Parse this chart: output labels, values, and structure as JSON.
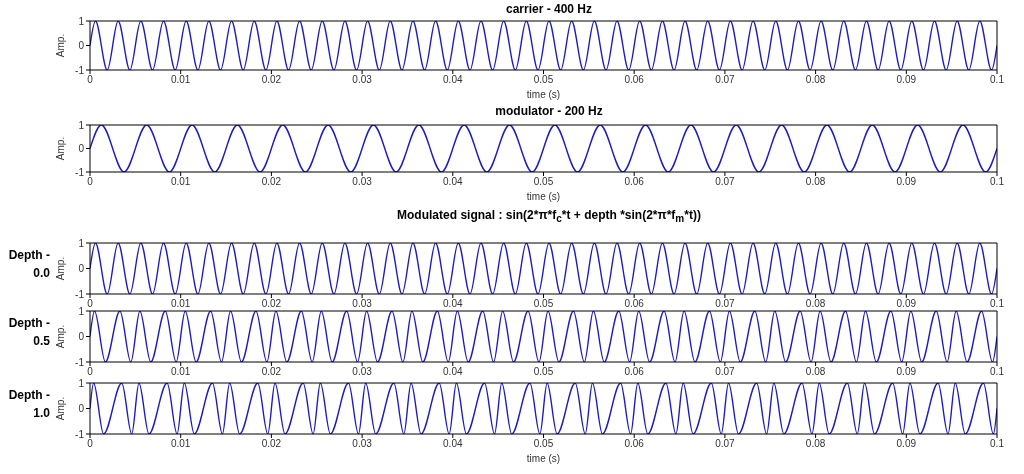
{
  "chart_data": [
    {
      "type": "line",
      "title": "carrier - 400 Hz",
      "xlabel": "time (s)",
      "ylabel": "Amp.",
      "xlim": [
        0,
        0.1
      ],
      "ylim": [
        -1,
        1
      ],
      "xticks": [
        0,
        0.01,
        0.02,
        0.03,
        0.04,
        0.05,
        0.06,
        0.07,
        0.08,
        0.09,
        0.1
      ],
      "yticks": [
        -1,
        0,
        1
      ],
      "x": [
        0,
        0.0006,
        0.0019,
        0.0031,
        0.0044,
        0.0056,
        0.0069,
        0.0081,
        0.0094,
        0.0106,
        0.0119,
        0.0131,
        0.0144,
        0.0156,
        0.0169,
        0.0181,
        0.0194,
        0.0206,
        0.0219,
        0.0231,
        0.0244,
        0.0256,
        0.0269,
        0.0281,
        0.0294,
        0.0306,
        0.0319,
        0.0331,
        0.0344,
        0.0356,
        0.0369,
        0.0381,
        0.0394,
        0.0406,
        0.0419,
        0.0431,
        0.0444,
        0.0456,
        0.0469,
        0.0481,
        0.0494,
        0.0506,
        0.0519,
        0.0531,
        0.0544,
        0.0556,
        0.0569,
        0.0581,
        0.0594,
        0.0606,
        0.0619,
        0.0631,
        0.0644,
        0.0656,
        0.0669,
        0.0681,
        0.0694,
        0.0706,
        0.0719,
        0.0731,
        0.0744,
        0.0756,
        0.0769,
        0.0781,
        0.0794,
        0.0806,
        0.0819,
        0.0831,
        0.0844,
        0.0856,
        0.0869,
        0.0881,
        0.0894,
        0.0906,
        0.0919,
        0.0931,
        0.0944,
        0.0956,
        0.0969,
        0.0981,
        0.0994,
        0.1
      ],
      "series": [
        {
          "color": "#1c1cb8",
          "values": [
            0,
            1,
            -1,
            1,
            -1,
            1,
            -1,
            1,
            -1,
            1,
            -1,
            1,
            -1,
            1,
            -1,
            1,
            -1,
            1,
            -1,
            1,
            -1,
            1,
            -1,
            1,
            -1,
            1,
            -1,
            1,
            -1,
            1,
            -1,
            1,
            -1,
            1,
            -1,
            1,
            -1,
            1,
            -1,
            1,
            -1,
            1,
            -1,
            1,
            -1,
            1,
            -1,
            1,
            -1,
            1,
            -1,
            1,
            -1,
            1,
            -1,
            1,
            -1,
            1,
            -1,
            1,
            -1,
            1,
            -1,
            1,
            -1,
            1,
            -1,
            1,
            -1,
            1,
            -1,
            1,
            -1,
            1,
            -1,
            1,
            -1,
            1,
            -1,
            1,
            -1,
            0
          ]
        }
      ]
    },
    {
      "type": "line",
      "title": "modulator - 200 Hz",
      "xlabel": "time (s)",
      "ylabel": "Amp.",
      "xlim": [
        0,
        0.1
      ],
      "ylim": [
        -1,
        1
      ],
      "xticks": [
        0,
        0.01,
        0.02,
        0.03,
        0.04,
        0.05,
        0.06,
        0.07,
        0.08,
        0.09,
        0.1
      ],
      "yticks": [
        -1,
        0,
        1
      ],
      "x": [
        0,
        0.00125,
        0.00375,
        0.00625,
        0.00875,
        0.01125,
        0.01375,
        0.01625,
        0.01875,
        0.02125,
        0.02375,
        0.02625,
        0.02875,
        0.03125,
        0.03375,
        0.03625,
        0.03875,
        0.04125,
        0.04375,
        0.04625,
        0.04875,
        0.05125,
        0.05375,
        0.05625,
        0.05875,
        0.06125,
        0.06375,
        0.06625,
        0.06875,
        0.07125,
        0.07375,
        0.07625,
        0.07875,
        0.08125,
        0.08375,
        0.08625,
        0.08875,
        0.09125,
        0.09375,
        0.09625,
        0.09875,
        0.1
      ],
      "series": [
        {
          "color": "#1c1cb8",
          "values": [
            0,
            1,
            -1,
            1,
            -1,
            1,
            -1,
            1,
            -1,
            1,
            -1,
            1,
            -1,
            1,
            -1,
            1,
            -1,
            1,
            -1,
            1,
            -1,
            1,
            -1,
            1,
            -1,
            1,
            -1,
            1,
            -1,
            1,
            -1,
            1,
            -1,
            1,
            -1,
            1,
            -1,
            1,
            -1,
            1,
            -1,
            0
          ]
        }
      ]
    },
    {
      "type": "line",
      "title": "Modulated signal : sin(2*π*f$_{c}$*t + depth *sin(2*π*f$_{m}$*t))",
      "ylabel": "Amp.",
      "annotations": [
        "Depth - 0.0"
      ],
      "xlim": [
        0,
        0.1
      ],
      "ylim": [
        -1,
        1
      ],
      "xticks": [
        0,
        0.01,
        0.02,
        0.03,
        0.04,
        0.05,
        0.06,
        0.07,
        0.08,
        0.09,
        0.1
      ],
      "yticks": [
        -1,
        0,
        1
      ],
      "x": [
        0,
        0.0006,
        0.0019,
        0.0031,
        0.0044,
        0.0056,
        0.0069,
        0.0081,
        0.0094,
        0.0106,
        0.0119,
        0.0131,
        0.0144,
        0.0156,
        0.0169,
        0.0181,
        0.0194,
        0.0206,
        0.0219,
        0.0231,
        0.0244,
        0.0256,
        0.0269,
        0.0281,
        0.0294,
        0.0306,
        0.0319,
        0.0331,
        0.0344,
        0.0356,
        0.0369,
        0.0381,
        0.0394,
        0.0406,
        0.0419,
        0.0431,
        0.0444,
        0.0456,
        0.0469,
        0.0481,
        0.0494,
        0.0506,
        0.0519,
        0.0531,
        0.0544,
        0.0556,
        0.0569,
        0.0581,
        0.0594,
        0.0606,
        0.0619,
        0.0631,
        0.0644,
        0.0656,
        0.0669,
        0.0681,
        0.0694,
        0.0706,
        0.0719,
        0.0731,
        0.0744,
        0.0756,
        0.0769,
        0.0781,
        0.0794,
        0.0806,
        0.0819,
        0.0831,
        0.0844,
        0.0856,
        0.0869,
        0.0881,
        0.0894,
        0.0906,
        0.0919,
        0.0931,
        0.0944,
        0.0956,
        0.0969,
        0.0981,
        0.0994,
        0.1
      ],
      "series": [
        {
          "color": "#1c1cb8",
          "values": [
            0,
            1,
            -1,
            1,
            -1,
            1,
            -1,
            1,
            -1,
            1,
            -1,
            1,
            -1,
            1,
            -1,
            1,
            -1,
            1,
            -1,
            1,
            -1,
            1,
            -1,
            1,
            -1,
            1,
            -1,
            1,
            -1,
            1,
            -1,
            1,
            -1,
            1,
            -1,
            1,
            -1,
            1,
            -1,
            1,
            -1,
            1,
            -1,
            1,
            -1,
            1,
            -1,
            1,
            -1,
            1,
            -1,
            1,
            -1,
            1,
            -1,
            1,
            -1,
            1,
            -1,
            1,
            -1,
            1,
            -1,
            1,
            -1,
            1,
            -1,
            1,
            -1,
            1,
            -1,
            1,
            -1,
            1,
            -1,
            1,
            -1,
            1,
            -1,
            1,
            -1,
            0
          ]
        }
      ]
    },
    {
      "type": "line",
      "ylabel": "Amp.",
      "annotations": [
        "Depth - 0.5"
      ],
      "xlim": [
        0,
        0.1
      ],
      "ylim": [
        -1,
        1
      ],
      "xticks": [
        0,
        0.01,
        0.02,
        0.03,
        0.04,
        0.05,
        0.06,
        0.07,
        0.08,
        0.09,
        0.1
      ],
      "yticks": [
        -1,
        0,
        1
      ],
      "x": [
        0,
        0.0005,
        0.0017,
        0.0033,
        0.0045,
        0.0055,
        0.0067,
        0.0083,
        0.0095,
        0.0105,
        0.0117,
        0.0133,
        0.0145,
        0.0155,
        0.0167,
        0.0183,
        0.0195,
        0.0205,
        0.0217,
        0.0233,
        0.0245,
        0.0255,
        0.0267,
        0.0283,
        0.0295,
        0.0305,
        0.0317,
        0.0333,
        0.0345,
        0.0355,
        0.0367,
        0.0383,
        0.0395,
        0.0405,
        0.0417,
        0.0433,
        0.0445,
        0.0455,
        0.0467,
        0.0483,
        0.0495,
        0.0505,
        0.0517,
        0.0533,
        0.0545,
        0.0555,
        0.0567,
        0.0583,
        0.0595,
        0.0605,
        0.0617,
        0.0633,
        0.0645,
        0.0655,
        0.0667,
        0.0683,
        0.0695,
        0.0705,
        0.0717,
        0.0733,
        0.0745,
        0.0755,
        0.0767,
        0.0783,
        0.0795,
        0.0805,
        0.0817,
        0.0833,
        0.0845,
        0.0855,
        0.0867,
        0.0883,
        0.0895,
        0.0905,
        0.0917,
        0.0933,
        0.0945,
        0.0955,
        0.0967,
        0.0983,
        0.0995,
        0.1
      ],
      "series": [
        {
          "color": "#1c1cb8",
          "values": [
            0,
            1,
            -1,
            1,
            -1,
            1,
            -1,
            1,
            -1,
            1,
            -1,
            1,
            -1,
            1,
            -1,
            1,
            -1,
            1,
            -1,
            1,
            -1,
            1,
            -1,
            1,
            -1,
            1,
            -1,
            1,
            -1,
            1,
            -1,
            1,
            -1,
            1,
            -1,
            1,
            -1,
            1,
            -1,
            1,
            -1,
            1,
            -1,
            1,
            -1,
            1,
            -1,
            1,
            -1,
            1,
            -1,
            1,
            -1,
            1,
            -1,
            1,
            -1,
            1,
            -1,
            1,
            -1,
            1,
            -1,
            1,
            -1,
            1,
            -1,
            1,
            -1,
            1,
            -1,
            1,
            -1,
            1,
            -1,
            1,
            -1,
            1,
            -1,
            1,
            -1,
            0
          ]
        }
      ]
    },
    {
      "type": "line",
      "xlabel": "time (s)",
      "ylabel": "Amp.",
      "annotations": [
        "Depth - 1.0"
      ],
      "xlim": [
        0,
        0.1
      ],
      "ylim": [
        -1,
        1
      ],
      "xticks": [
        0,
        0.01,
        0.02,
        0.03,
        0.04,
        0.05,
        0.06,
        0.07,
        0.08,
        0.09,
        0.1
      ],
      "yticks": [
        -1,
        0,
        1
      ],
      "x": [
        0,
        0.0004,
        0.0015,
        0.0035,
        0.0046,
        0.0054,
        0.0065,
        0.0085,
        0.0096,
        0.0104,
        0.0115,
        0.0135,
        0.0146,
        0.0154,
        0.0165,
        0.0185,
        0.0196,
        0.0204,
        0.0215,
        0.0235,
        0.0246,
        0.0254,
        0.0265,
        0.0285,
        0.0296,
        0.0304,
        0.0315,
        0.0335,
        0.0346,
        0.0354,
        0.0365,
        0.0385,
        0.0396,
        0.0404,
        0.0415,
        0.0435,
        0.0446,
        0.0454,
        0.0465,
        0.0485,
        0.0496,
        0.0504,
        0.0515,
        0.0535,
        0.0546,
        0.0554,
        0.0565,
        0.0585,
        0.0596,
        0.0604,
        0.0615,
        0.0635,
        0.0646,
        0.0654,
        0.0665,
        0.0685,
        0.0696,
        0.0704,
        0.0715,
        0.0735,
        0.0746,
        0.0754,
        0.0765,
        0.0785,
        0.0796,
        0.0804,
        0.0815,
        0.0835,
        0.0846,
        0.0854,
        0.0865,
        0.0885,
        0.0896,
        0.0904,
        0.0915,
        0.0935,
        0.0946,
        0.0954,
        0.0965,
        0.0985,
        0.0996,
        0.1
      ],
      "series": [
        {
          "color": "#1c1cb8",
          "values": [
            0,
            1,
            -1,
            1,
            -1,
            1,
            -1,
            1,
            -1,
            1,
            -1,
            1,
            -1,
            1,
            -1,
            1,
            -1,
            1,
            -1,
            1,
            -1,
            1,
            -1,
            1,
            -1,
            1,
            -1,
            1,
            -1,
            1,
            -1,
            1,
            -1,
            1,
            -1,
            1,
            -1,
            1,
            -1,
            1,
            -1,
            1,
            -1,
            1,
            -1,
            1,
            -1,
            1,
            -1,
            1,
            -1,
            1,
            -1,
            1,
            -1,
            1,
            -1,
            1,
            -1,
            1,
            -1,
            1,
            -1,
            1,
            -1,
            1,
            -1,
            1,
            -1,
            1,
            -1,
            1,
            -1,
            1,
            -1,
            1,
            -1,
            1,
            -1,
            1,
            -1,
            0
          ]
        }
      ]
    }
  ]
}
